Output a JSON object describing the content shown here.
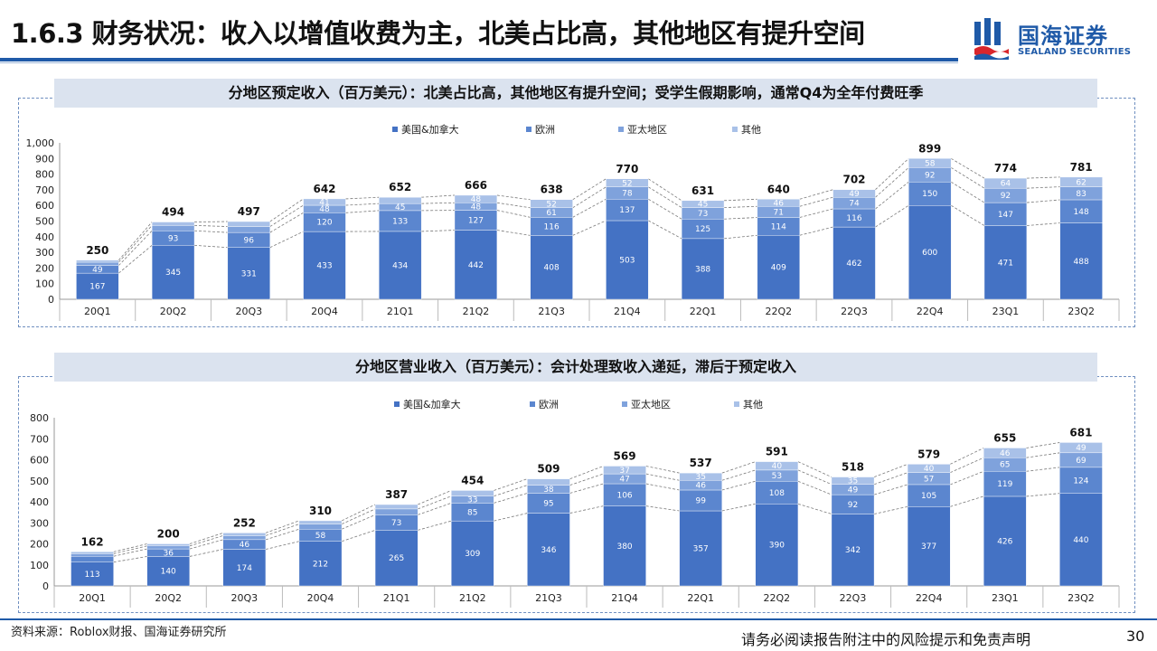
{
  "header": {
    "title": "1.6.3 财务状况：收入以增值收费为主，北美占比高，其他地区有提升空间",
    "logo_cn": "国海证券",
    "logo_en": "SEALAND SECURITIES"
  },
  "colors": {
    "accent": "#1f5aa8",
    "series": [
      "#4472c4",
      "#5b86cf",
      "#7fa2dc",
      "#a9c1e8"
    ]
  },
  "chart_data": [
    {
      "type": "bar",
      "stacked": true,
      "title": "分地区预定收入（百万美元）：北美占比高，其他地区有提升空间；受学生假期影响，通常Q4为全年付费旺季",
      "xlabel": "",
      "ylabel": "",
      "ylim": [
        0,
        1000
      ],
      "yticks": [
        0,
        100,
        200,
        300,
        400,
        500,
        600,
        700,
        800,
        900,
        1000
      ],
      "ytick_labels": [
        "0",
        "100",
        "200",
        "300",
        "400",
        "500",
        "600",
        "700",
        "800",
        "900",
        "1,000"
      ],
      "legend_position": "top",
      "grid": false,
      "categories": [
        "20Q1",
        "20Q2",
        "20Q3",
        "20Q4",
        "21Q1",
        "21Q2",
        "21Q3",
        "21Q4",
        "22Q1",
        "22Q2",
        "22Q3",
        "22Q4",
        "23Q1",
        "23Q2"
      ],
      "series": [
        {
          "name": "美国&加拿大",
          "values": [
            167,
            345,
            331,
            433,
            434,
            442,
            408,
            503,
            388,
            409,
            462,
            600,
            471,
            488
          ]
        },
        {
          "name": "欧洲",
          "values": [
            49,
            93,
            96,
            120,
            133,
            127,
            116,
            137,
            125,
            114,
            116,
            150,
            147,
            148
          ]
        },
        {
          "name": "亚太地区",
          "values": [
            21,
            34,
            38,
            48,
            45,
            48,
            61,
            78,
            73,
            71,
            74,
            92,
            92,
            83
          ]
        },
        {
          "name": "其他",
          "values": [
            13,
            22,
            32,
            41,
            40,
            48,
            52,
            52,
            45,
            46,
            49,
            58,
            64,
            62
          ]
        }
      ],
      "totals": [
        250,
        494,
        497,
        642,
        652,
        666,
        638,
        770,
        631,
        640,
        702,
        899,
        774,
        781
      ]
    },
    {
      "type": "bar",
      "stacked": true,
      "title": "分地区营业收入（百万美元）：会计处理致收入递延，滞后于预定收入",
      "xlabel": "",
      "ylabel": "",
      "ylim": [
        0,
        800
      ],
      "yticks": [
        0,
        100,
        200,
        300,
        400,
        500,
        600,
        700,
        800
      ],
      "ytick_labels": [
        "0",
        "100",
        "200",
        "300",
        "400",
        "500",
        "600",
        "700",
        "800"
      ],
      "legend_position": "top",
      "grid": false,
      "categories": [
        "20Q1",
        "20Q2",
        "20Q3",
        "20Q4",
        "21Q1",
        "21Q2",
        "21Q3",
        "21Q4",
        "22Q1",
        "22Q2",
        "22Q3",
        "22Q4",
        "23Q1",
        "23Q2"
      ],
      "series": [
        {
          "name": "美国&加拿大",
          "values": [
            113,
            140,
            174,
            212,
            265,
            309,
            346,
            380,
            357,
            390,
            342,
            377,
            426,
            440
          ]
        },
        {
          "name": "欧洲",
          "values": [
            28,
            36,
            46,
            58,
            73,
            85,
            95,
            106,
            99,
            108,
            92,
            105,
            119,
            124
          ]
        },
        {
          "name": "亚太地区",
          "values": [
            12,
            14,
            19,
            24,
            28,
            33,
            38,
            47,
            46,
            53,
            49,
            57,
            65,
            69
          ]
        },
        {
          "name": "其他",
          "values": [
            9,
            10,
            13,
            16,
            21,
            27,
            30,
            37,
            35,
            40,
            35,
            40,
            46,
            49
          ]
        }
      ],
      "totals": [
        162,
        200,
        252,
        310,
        387,
        454,
        509,
        569,
        537,
        591,
        518,
        579,
        655,
        681
      ]
    }
  ],
  "footer": {
    "source": "资料来源：Roblox财报、国海证券研究所",
    "disclaimer": "请务必阅读报告附注中的风险提示和免责声明",
    "page_number": "30"
  }
}
